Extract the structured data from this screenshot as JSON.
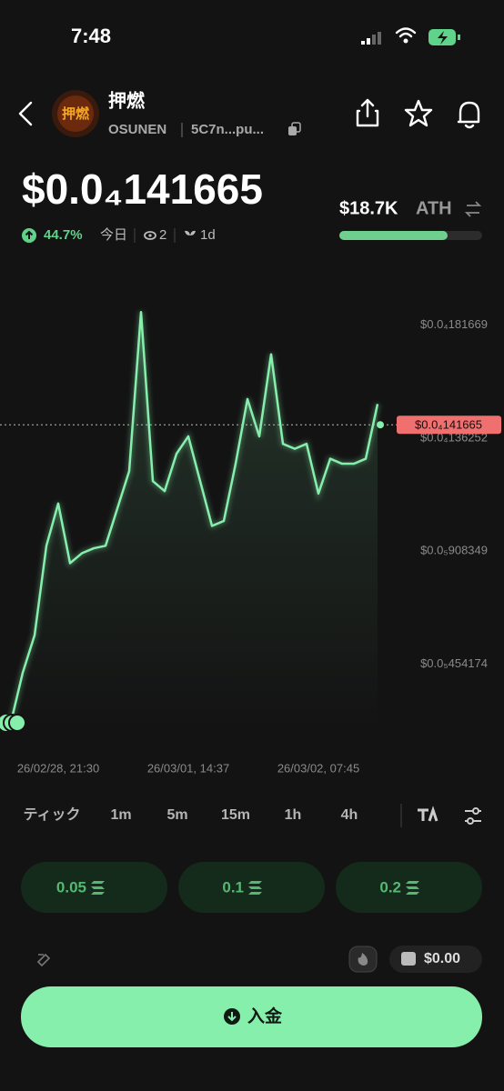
{
  "status_bar": {
    "time": "7:48"
  },
  "token": {
    "name": "押燃",
    "ticker": "OSUNEN",
    "address": "5C7n...pu..."
  },
  "ath": {
    "value": "$18.7K",
    "label": "ATH"
  },
  "stats": {
    "change": "44.7%",
    "period": "今日",
    "watchers": "2",
    "age": "1d"
  },
  "chart_data": {
    "type": "line",
    "categories": [
      null,
      null,
      null,
      null,
      "26/02/28, 21:30",
      null,
      null,
      null,
      null,
      null,
      null,
      null,
      null,
      null,
      null,
      "26/03/01, 14:37",
      null,
      null,
      null,
      null,
      null,
      null,
      null,
      null,
      null,
      null,
      "26/03/02, 07:45",
      null,
      null,
      null,
      null,
      null
    ],
    "series": [
      {
        "name": "price",
        "color": "#86efac",
        "values": [
          2.2e-06,
          4.2e-06,
          5.7e-06,
          9.3e-06,
          1.1e-05,
          8.6e-06,
          9e-06,
          9.2e-06,
          9.3e-06,
          1.08e-05,
          1.23e-05,
          1.87e-05,
          1.19e-05,
          1.15e-05,
          1.3e-05,
          1.37e-05,
          1.19e-05,
          1.01e-05,
          1.03e-05,
          1.26e-05,
          1.52e-05,
          1.37e-05,
          1.7e-05,
          1.34e-05,
          1.32e-05,
          1.34e-05,
          1.14e-05,
          1.28e-05,
          1.26e-05,
          1.26e-05,
          1.28e-05,
          1.5e-05
        ]
      }
    ],
    "ylim": [
      2e-06,
      1.9e-05
    ],
    "yticks": [
      {
        "value": 4.54174e-06,
        "label": "$0.0₅454174"
      },
      {
        "value": 9.08349e-06,
        "label": "$0.0₅908349"
      },
      {
        "value": 1.36252e-05,
        "label": "$0.0₄136252"
      },
      {
        "value": 1.81669e-05,
        "label": "$0.0₄181669"
      }
    ],
    "current_price": {
      "value": 1.41665e-05,
      "label": "$0.0₄141665"
    }
  },
  "intervals": [
    "ティック",
    "1m",
    "5m",
    "15m",
    "1h",
    "4h"
  ],
  "amounts": [
    "0.05",
    "0.1",
    "0.2"
  ],
  "wallet_balance": "$0.00",
  "deposit": "入金"
}
